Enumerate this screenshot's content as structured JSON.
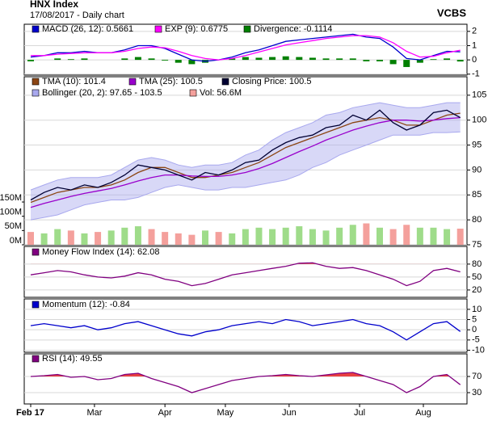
{
  "header": {
    "title": "HNX Index",
    "subtitle": "17/08/2017 - Daily chart",
    "brand": "VCBS"
  },
  "chart_data": [
    {
      "type": "line",
      "xlim": [
        0,
        130
      ],
      "x": [
        0,
        4,
        8,
        12,
        16,
        20,
        24,
        28,
        32,
        36,
        40,
        44,
        48,
        52,
        56,
        60,
        64,
        68,
        72,
        76,
        80,
        84,
        88,
        92,
        96,
        100,
        104,
        108,
        112,
        116,
        120,
        124,
        128
      ],
      "ylim": [
        -1.07,
        2.5
      ],
      "yticks": [
        -1,
        0,
        1,
        2
      ],
      "grid": true,
      "series": [
        {
          "name": "MACD (26, 12): 0.5661",
          "kind": "line",
          "color": "#0000cc",
          "values": [
            0.2,
            0.3,
            0.5,
            0.5,
            0.6,
            0.5,
            0.5,
            0.7,
            1.0,
            1.0,
            0.8,
            0.4,
            0.0,
            -0.1,
            0.0,
            0.2,
            0.5,
            0.7,
            1.0,
            1.3,
            1.4,
            1.5,
            1.6,
            1.7,
            1.8,
            1.6,
            1.5,
            0.9,
            0.1,
            0.0,
            0.3,
            0.6,
            0.5661
          ]
        },
        {
          "name": "EXP (9): 0.6775",
          "kind": "line",
          "color": "#ff00ff",
          "values": [
            0.3,
            0.3,
            0.4,
            0.45,
            0.5,
            0.5,
            0.5,
            0.6,
            0.8,
            0.9,
            0.85,
            0.6,
            0.3,
            0.1,
            0.0,
            0.1,
            0.3,
            0.55,
            0.8,
            1.05,
            1.2,
            1.35,
            1.5,
            1.6,
            1.7,
            1.7,
            1.6,
            1.2,
            0.6,
            0.2,
            0.25,
            0.5,
            0.6775
          ]
        },
        {
          "name": "Divergence: -0.1114",
          "kind": "bar",
          "color": "#008000",
          "values": [
            -0.1,
            0,
            0.1,
            0.05,
            0.1,
            0,
            0,
            0.1,
            0.2,
            0.1,
            -0.05,
            -0.2,
            -0.3,
            -0.2,
            0,
            0.1,
            0.2,
            0.15,
            0.2,
            0.25,
            0.2,
            0.15,
            0.1,
            0.1,
            0.1,
            -0.1,
            -0.1,
            -0.3,
            -0.5,
            -0.2,
            0.05,
            0.1,
            -0.1114
          ]
        }
      ]
    },
    {
      "type": "line",
      "xlim": [
        0,
        130
      ],
      "x": [
        0,
        4,
        8,
        12,
        16,
        20,
        24,
        28,
        32,
        36,
        40,
        44,
        48,
        52,
        56,
        60,
        64,
        68,
        72,
        76,
        80,
        84,
        88,
        92,
        96,
        100,
        104,
        108,
        112,
        116,
        120,
        124,
        128
      ],
      "ylim": [
        75,
        108.7
      ],
      "yticks": [
        75,
        80,
        85,
        90,
        95,
        100,
        105
      ],
      "grid": true,
      "y2lim": [
        0,
        589
      ],
      "y2ticks": [
        {
          "value": 0,
          "label": "0M"
        },
        {
          "value": 50,
          "label": "50M"
        },
        {
          "value": 100,
          "label": "100M"
        },
        {
          "value": 150,
          "label": "150M"
        }
      ],
      "series": [
        {
          "name": "TMA (10): 101.4",
          "kind": "line",
          "color": "#8b4513",
          "values": [
            83.5,
            84.5,
            85.5,
            86,
            86.5,
            86.5,
            87,
            88,
            89.5,
            90.5,
            90.5,
            89.5,
            88.5,
            88.5,
            89,
            89.5,
            90.5,
            91.5,
            93,
            94.5,
            95.5,
            96.5,
            97.5,
            98.5,
            99.5,
            100,
            100.5,
            100,
            99,
            99,
            100,
            101,
            101.4
          ]
        },
        {
          "name": "TMA (25): 100.5",
          "kind": "line",
          "color": "#9900cc",
          "values": [
            82.5,
            83.3,
            84,
            84.7,
            85.3,
            85.8,
            86.3,
            87,
            87.8,
            88.5,
            89,
            89,
            88.8,
            88.7,
            88.7,
            89,
            89.5,
            90.3,
            91.3,
            92.5,
            93.7,
            94.8,
            96,
            97,
            98,
            98.8,
            99.5,
            100,
            100,
            99.8,
            100,
            100.3,
            100.5
          ]
        },
        {
          "name": "Closing Price: 100.5",
          "kind": "line",
          "color": "#000033",
          "values": [
            84,
            85.5,
            86.5,
            86,
            87,
            86.5,
            87.5,
            89,
            91,
            90.5,
            90,
            89,
            88,
            89.5,
            89,
            90,
            91.5,
            92,
            94,
            95.5,
            96.5,
            97,
            98.5,
            99,
            101,
            100,
            102,
            99.5,
            98,
            99,
            101.5,
            102,
            100.5
          ]
        },
        {
          "name": "Bollinger (20, 2): 97.65 - 103.5",
          "kind": "band",
          "color": "#a8a8ee",
          "upper": [
            86,
            87,
            88,
            88.5,
            88.5,
            88.5,
            89,
            90.5,
            92,
            92.5,
            92,
            91,
            90.5,
            91,
            91,
            91.5,
            93,
            94,
            96,
            97.5,
            98.5,
            99.5,
            101,
            101.5,
            102.5,
            103,
            103.5,
            103,
            102.5,
            102.5,
            103,
            103.5,
            103.5
          ],
          "lower": [
            80,
            80.5,
            81,
            82,
            83,
            83.5,
            84,
            84,
            84.5,
            85.5,
            86.5,
            87,
            86.5,
            86,
            86,
            86.5,
            86.5,
            87,
            87.5,
            88,
            89,
            90.5,
            91.5,
            93,
            94,
            95,
            96,
            97,
            97,
            97,
            97.5,
            97.5,
            97.65
          ]
        },
        {
          "name": "Vol: 56.6M",
          "kind": "bar",
          "axis": "y2",
          "color": "#f4a09c",
          "up_color": "#9fdc8a",
          "values": [
            45,
            40,
            55,
            50,
            40,
            45,
            50,
            60,
            65,
            55,
            45,
            40,
            35,
            50,
            45,
            40,
            55,
            60,
            55,
            60,
            65,
            55,
            50,
            60,
            70,
            75,
            60,
            55,
            70,
            60,
            60,
            55,
            56.6
          ]
        }
      ]
    },
    {
      "type": "line",
      "xlim": [
        0,
        130
      ],
      "x": [
        0,
        4,
        8,
        12,
        16,
        20,
        24,
        28,
        32,
        36,
        40,
        44,
        48,
        52,
        56,
        60,
        64,
        68,
        72,
        76,
        80,
        84,
        88,
        92,
        96,
        100,
        104,
        108,
        112,
        116,
        120,
        124,
        128
      ],
      "ylim": [
        3,
        121
      ],
      "yticks": [
        20,
        50,
        80
      ],
      "grid": true,
      "series": [
        {
          "name": "Money Flow Index (14): 62.08",
          "kind": "line",
          "color": "#800080",
          "highlight_color": "#e84040",
          "values": [
            55,
            60,
            65,
            62,
            55,
            50,
            48,
            52,
            60,
            55,
            45,
            40,
            30,
            35,
            45,
            55,
            60,
            65,
            70,
            75,
            82,
            83,
            75,
            70,
            72,
            65,
            55,
            45,
            30,
            40,
            65,
            70,
            62.08
          ]
        }
      ]
    },
    {
      "type": "line",
      "xlim": [
        0,
        130
      ],
      "x": [
        0,
        4,
        8,
        12,
        16,
        20,
        24,
        28,
        32,
        36,
        40,
        44,
        48,
        52,
        56,
        60,
        64,
        68,
        72,
        76,
        80,
        84,
        88,
        92,
        96,
        100,
        104,
        108,
        112,
        116,
        120,
        124,
        128
      ],
      "ylim": [
        -11,
        15.1
      ],
      "yticks": [
        -10,
        -5,
        0,
        5,
        10
      ],
      "grid": true,
      "series": [
        {
          "name": "Momentum (12): -0.84",
          "kind": "line",
          "color": "#0000cc",
          "values": [
            2,
            3,
            2,
            1,
            2,
            0,
            1,
            3,
            4,
            2,
            0,
            -2,
            -3,
            -1,
            0,
            2,
            3,
            4,
            3,
            5,
            4,
            2,
            3,
            4,
            5,
            3,
            2,
            -1,
            -5,
            -1,
            3,
            4,
            -0.84
          ]
        }
      ]
    },
    {
      "type": "line",
      "xlim": [
        0,
        130
      ],
      "x": [
        0,
        4,
        8,
        12,
        16,
        20,
        24,
        28,
        32,
        36,
        40,
        44,
        48,
        52,
        56,
        60,
        64,
        68,
        72,
        76,
        80,
        84,
        88,
        92,
        96,
        100,
        104,
        108,
        112,
        116,
        120,
        124,
        128
      ],
      "ylim": [
        2,
        126
      ],
      "yticks": [
        30,
        70
      ],
      "grid": true,
      "xticks": [
        {
          "value": 0,
          "label": "Feb 17"
        },
        {
          "value": 19,
          "label": "Mar"
        },
        {
          "value": 40,
          "label": "Apr"
        },
        {
          "value": 58,
          "label": "May"
        },
        {
          "value": 77,
          "label": "Jun"
        },
        {
          "value": 98,
          "label": "Jul"
        },
        {
          "value": 117,
          "label": "Aug"
        }
      ],
      "series": [
        {
          "name": "RSI (14): 49.55",
          "kind": "line",
          "color": "#800080",
          "highlight_color": "#e84040",
          "values": [
            70,
            72,
            75,
            68,
            70,
            62,
            65,
            75,
            78,
            65,
            55,
            45,
            30,
            40,
            50,
            60,
            65,
            70,
            72,
            75,
            72,
            70,
            74,
            78,
            80,
            70,
            60,
            50,
            30,
            45,
            70,
            75,
            49.55
          ]
        }
      ]
    }
  ]
}
